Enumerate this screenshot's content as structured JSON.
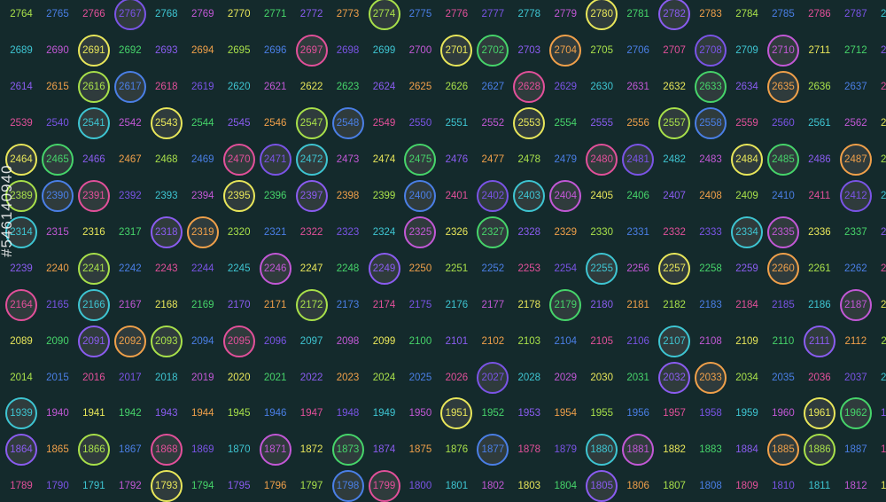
{
  "watermark_id": "#546140940",
  "palette": {
    "yellow": "#e8e65a",
    "orange": "#f0a04a",
    "pink": "#e2509a",
    "magenta": "#c258d6",
    "purple": "#8a5cf0",
    "blue": "#4a7fe6",
    "cyan": "#3ec5d2",
    "green": "#46d46a",
    "lime": "#a8e04a",
    "violet": "#7a54e6"
  },
  "rows": [
    {
      "start": 2764,
      "circled": [
        2767,
        2774,
        2780,
        2782
      ]
    },
    {
      "start": 2689,
      "circled": [
        2691,
        2697,
        2701,
        2702,
        2704,
        2708,
        2710
      ]
    },
    {
      "start": 2614,
      "circled": [
        2616,
        2617,
        2628,
        2633,
        2635
      ]
    },
    {
      "start": 2539,
      "circled": [
        2541,
        2543,
        2547,
        2548,
        2553,
        2557,
        2558
      ]
    },
    {
      "start": 2464,
      "circled": [
        2464,
        2465,
        2470,
        2471,
        2472,
        2475,
        2480,
        2481,
        2484,
        2485,
        2487
      ]
    },
    {
      "start": 2389,
      "circled": [
        2389,
        2390,
        2391,
        2395,
        2397,
        2400,
        2402,
        2403,
        2404,
        2412
      ]
    },
    {
      "start": 2314,
      "circled": [
        2314,
        2318,
        2319,
        2325,
        2327,
        2334,
        2335
      ]
    },
    {
      "start": 2239,
      "circled": [
        2241,
        2246,
        2249,
        2255,
        2257,
        2260
      ]
    },
    {
      "start": 2164,
      "circled": [
        2164,
        2166,
        2172,
        2179,
        2187
      ]
    },
    {
      "start": 2089,
      "circled": [
        2091,
        2092,
        2093,
        2095,
        2107,
        2111
      ]
    },
    {
      "start": 2014,
      "circled": [
        2027,
        2032,
        2033
      ]
    },
    {
      "start": 1939,
      "circled": [
        1939,
        1951,
        1961,
        1962
      ]
    },
    {
      "start": 1864,
      "circled": [
        1864,
        1866,
        1868,
        1871,
        1873,
        1877,
        1880,
        1881,
        1885,
        1886
      ]
    },
    {
      "start": 1789,
      "circled": [
        1793,
        1798,
        1799,
        1805
      ]
    }
  ]
}
